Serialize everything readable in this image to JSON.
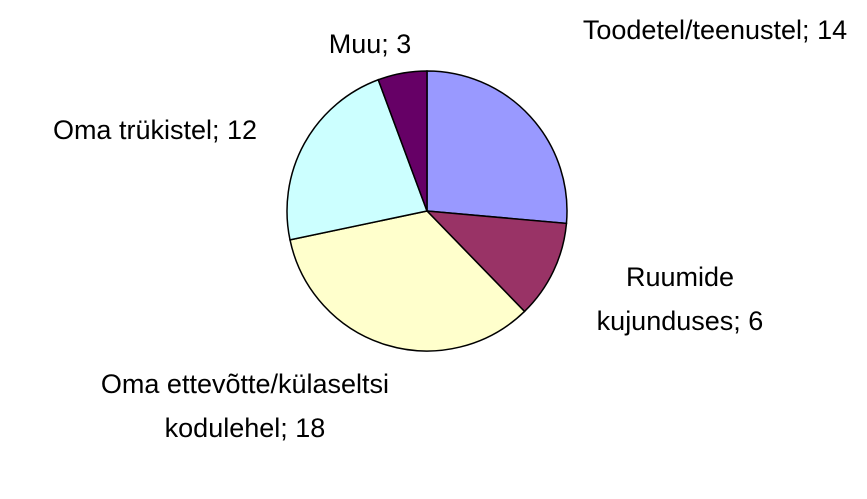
{
  "chart_data": {
    "type": "pie",
    "categories": [
      "Toodetel/teenustel;",
      "Ruumide kujunduses;",
      "Oma ettevõtte/külaseltsi kodulehel;",
      "Oma trükistel;",
      "Muu;"
    ],
    "values": [
      14,
      6,
      18,
      12,
      3
    ],
    "colors": [
      "#9999ff",
      "#993366",
      "#ffffcc",
      "#ccffff",
      "#660066"
    ]
  }
}
